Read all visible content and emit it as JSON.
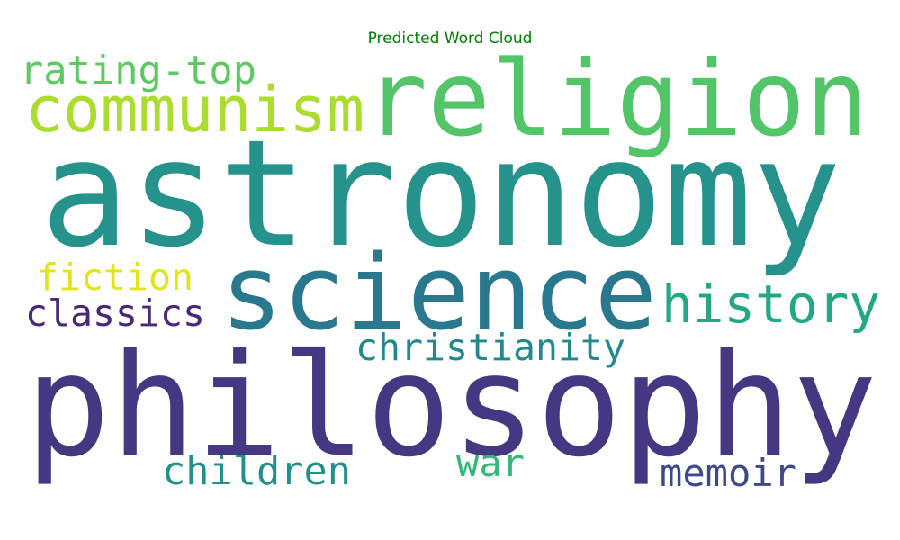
{
  "title": "Predicted Word Cloud",
  "title_color": "#008000",
  "words": [
    {
      "text": "rating-top",
      "color": "#5ec962"
    },
    {
      "text": "communism",
      "color": "#addc30"
    },
    {
      "text": "religion",
      "color": "#52c569"
    },
    {
      "text": "astronomy",
      "color": "#26928c"
    },
    {
      "text": "fiction",
      "color": "#e2e418"
    },
    {
      "text": "classics",
      "color": "#482878"
    },
    {
      "text": "science",
      "color": "#2a788e"
    },
    {
      "text": "history",
      "color": "#22a884"
    },
    {
      "text": "christianity",
      "color": "#23898e"
    },
    {
      "text": "philosophy",
      "color": "#453781"
    },
    {
      "text": "children",
      "color": "#21918c"
    },
    {
      "text": "war",
      "color": "#35b779"
    },
    {
      "text": "memoir",
      "color": "#3e4989"
    }
  ]
}
